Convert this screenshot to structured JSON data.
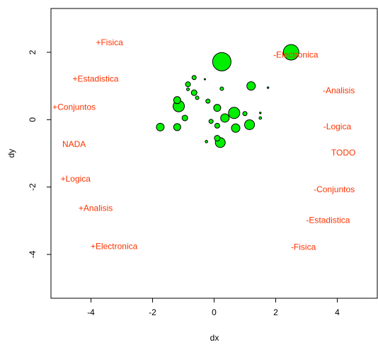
{
  "chart_data": {
    "type": "scatter",
    "title": "",
    "xlabel": "dx",
    "ylabel": "dy",
    "xlim": [
      -5.3,
      5.3
    ],
    "ylim": [
      -5.3,
      3.3
    ],
    "xticks": [
      -4,
      -2,
      0,
      2,
      4
    ],
    "yticks": [
      -4,
      -2,
      0,
      2
    ],
    "grid": false,
    "point_color": "#00ee00",
    "label_color": "#ff3300",
    "points": [
      {
        "x": 0.25,
        "y": 1.72,
        "size": 13
      },
      {
        "x": 2.5,
        "y": 2.0,
        "size": 11
      },
      {
        "x": 0.65,
        "y": 0.2,
        "size": 8
      },
      {
        "x": -1.15,
        "y": 0.4,
        "size": 8
      },
      {
        "x": 1.15,
        "y": -0.15,
        "size": 7
      },
      {
        "x": 0.2,
        "y": -0.68,
        "size": 7
      },
      {
        "x": 1.2,
        "y": 1.0,
        "size": 6
      },
      {
        "x": 0.35,
        "y": 0.05,
        "size": 6
      },
      {
        "x": -1.2,
        "y": 0.58,
        "size": 5
      },
      {
        "x": 0.7,
        "y": -0.25,
        "size": 6
      },
      {
        "x": -1.75,
        "y": -0.22,
        "size": 5.5
      },
      {
        "x": 0.1,
        "y": 0.35,
        "size": 5
      },
      {
        "x": -1.2,
        "y": -0.22,
        "size": 5
      },
      {
        "x": -0.95,
        "y": 0.05,
        "size": 4
      },
      {
        "x": -0.65,
        "y": 0.8,
        "size": 4
      },
      {
        "x": 0.1,
        "y": -0.55,
        "size": 4
      },
      {
        "x": 0.1,
        "y": -0.18,
        "size": 3.5
      },
      {
        "x": -0.85,
        "y": 1.05,
        "size": 3.5
      },
      {
        "x": -0.1,
        "y": -0.05,
        "size": 3
      },
      {
        "x": -0.65,
        "y": 1.25,
        "size": 3
      },
      {
        "x": 1.0,
        "y": 0.18,
        "size": 3
      },
      {
        "x": -0.2,
        "y": 0.55,
        "size": 3
      },
      {
        "x": -0.55,
        "y": 0.65,
        "size": 2.5
      },
      {
        "x": 0.25,
        "y": 0.92,
        "size": 2.5
      },
      {
        "x": -0.85,
        "y": 0.9,
        "size": 2
      },
      {
        "x": -0.25,
        "y": -0.65,
        "size": 1.8
      },
      {
        "x": 1.5,
        "y": 0.05,
        "size": 1.8
      },
      {
        "x": 1.5,
        "y": 0.2,
        "size": 1.2
      },
      {
        "x": 1.75,
        "y": 0.95,
        "size": 1.2
      },
      {
        "x": -0.3,
        "y": 1.2,
        "size": 1.0
      }
    ],
    "annotations": [
      {
        "text": "+Fisica",
        "x": -3.4,
        "y": 2.3
      },
      {
        "text": "-Electronica",
        "x": 2.65,
        "y": 1.93
      },
      {
        "text": "+Estadistica",
        "x": -3.85,
        "y": 1.22
      },
      {
        "text": "-Analisis",
        "x": 4.05,
        "y": 0.87
      },
      {
        "text": "+Conjuntos",
        "x": -4.55,
        "y": 0.38
      },
      {
        "text": "-Logica",
        "x": 4.0,
        "y": -0.2
      },
      {
        "text": "NADA",
        "x": -4.55,
        "y": -0.72
      },
      {
        "text": "TODO",
        "x": 4.2,
        "y": -0.98
      },
      {
        "text": "+Logica",
        "x": -4.5,
        "y": -1.75
      },
      {
        "text": "-Conjuntos",
        "x": 3.9,
        "y": -2.07
      },
      {
        "text": "+Analisis",
        "x": -3.85,
        "y": -2.62
      },
      {
        "text": "-Estadistica",
        "x": 3.7,
        "y": -2.98
      },
      {
        "text": "+Electronica",
        "x": -3.25,
        "y": -3.75
      },
      {
        "text": "-Fisica",
        "x": 2.9,
        "y": -3.78
      }
    ]
  }
}
